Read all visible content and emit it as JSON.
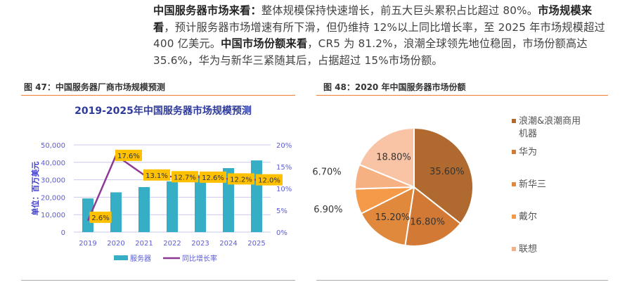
{
  "paragraph": {
    "s1_bold": "中国服务器市场来看：",
    "s1": "整体规模保持快速增长，前五大巨头累积占比超过 80%。",
    "s2_bold": "市场规模来看",
    "s2": "，预计服务器市场增速有所下滑，但仍维持 12%以上同比增长率，至 2025 年市场规模超过 400 亿美元。",
    "s3_bold": "中国市场份额来看",
    "s3": "，CR5 为 81.2%，浪潮全球领先地位稳固，市场份额高达 35.6%，华为与新华三紧随其后，占据超过 15%市场份额。"
  },
  "fig47_caption": "图 47：中国服务器厂商市场规模预测",
  "fig48_caption": "图 48：2020 年中国服务器市场份额",
  "colors": {
    "bar": "#36afc6",
    "line": "#8e3a95",
    "label_bg": "#ffc000",
    "axis_text": "#5b5bd6",
    "rule": "#ed7d31"
  },
  "chart_data": [
    {
      "type": "bar+line",
      "title": "2019-2025年中国服务器市场规模预测",
      "ylabel": "单位：百万美元",
      "categories": [
        "2019",
        "2020",
        "2021",
        "2022",
        "2023",
        "2024",
        "2025"
      ],
      "ylim": [
        0,
        50000
      ],
      "y2lim": [
        0,
        20
      ],
      "yticks": [
        "0",
        "10,000",
        "20,000",
        "30,000",
        "40,000",
        "50,000"
      ],
      "y2ticks": [
        "0%",
        "5%",
        "10%",
        "15%",
        "20%"
      ],
      "series": [
        {
          "name": "服务器",
          "type": "bar",
          "values": [
            19300,
            22800,
            25800,
            29100,
            32800,
            36700,
            41100
          ]
        },
        {
          "name": "同比增长率",
          "type": "line",
          "axis": "right",
          "values": [
            2.6,
            17.6,
            13.1,
            12.7,
            12.6,
            12.2,
            12.0
          ],
          "labels": [
            "2.6%",
            "17.6%",
            "13.1%",
            "12.7%",
            "12.6%",
            "12.2%",
            "12.0%"
          ]
        }
      ],
      "legend": "bottom"
    },
    {
      "type": "pie",
      "title": "2020 年中国服务器市场份额",
      "slices": [
        {
          "name": "浪潮&浪潮商用机器",
          "value": 35.6,
          "label": "35.60%",
          "color": "#b06a30"
        },
        {
          "name": "华为",
          "value": 16.8,
          "label": "16.80%",
          "color": "#d27a35"
        },
        {
          "name": "新华三",
          "value": 15.2,
          "label": "15.20%",
          "color": "#e0883c"
        },
        {
          "name": "戴尔",
          "value": 6.9,
          "label": "6.90%",
          "color": "#f59a48"
        },
        {
          "name": "联想",
          "value": 6.7,
          "label": "6.70%",
          "color": "#f6b183"
        },
        {
          "name": "",
          "value": 18.8,
          "label": "18.80%",
          "color": "#f8c4a5"
        }
      ],
      "legend": "right"
    }
  ]
}
